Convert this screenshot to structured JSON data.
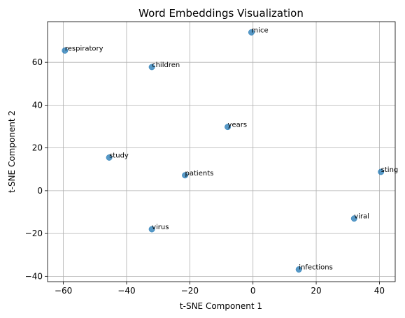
{
  "chart_data": {
    "type": "scatter",
    "title": "Word Embeddings Visualization",
    "xlabel": "t-SNE Component 1",
    "ylabel": "t-SNE Component 2",
    "xlim": [
      -65,
      45
    ],
    "ylim": [
      -42.5,
      79
    ],
    "xticks": [
      -60,
      -40,
      -20,
      0,
      20,
      40
    ],
    "yticks": [
      -40,
      -20,
      0,
      20,
      40,
      60
    ],
    "xtick_labels": [
      "−60",
      "−40",
      "−20",
      "0",
      "20",
      "40"
    ],
    "ytick_labels": [
      "−40",
      "−20",
      "0",
      "20",
      "40",
      "60"
    ],
    "grid": true,
    "marker_color": "#1f77b4",
    "points": [
      {
        "label": "respiratory",
        "x": -59.5,
        "y": 65.5
      },
      {
        "label": "mice",
        "x": -0.5,
        "y": 74.0
      },
      {
        "label": "children",
        "x": -32.0,
        "y": 57.8
      },
      {
        "label": "years",
        "x": -8.0,
        "y": 29.8
      },
      {
        "label": "study",
        "x": -45.5,
        "y": 15.5
      },
      {
        "label": "patients",
        "x": -21.5,
        "y": 7.2
      },
      {
        "label": "sting",
        "x": 40.5,
        "y": 8.8
      },
      {
        "label": "virus",
        "x": -32.0,
        "y": -18.0
      },
      {
        "label": "viral",
        "x": 32.0,
        "y": -13.0
      },
      {
        "label": "infections",
        "x": 14.5,
        "y": -36.8
      }
    ]
  }
}
